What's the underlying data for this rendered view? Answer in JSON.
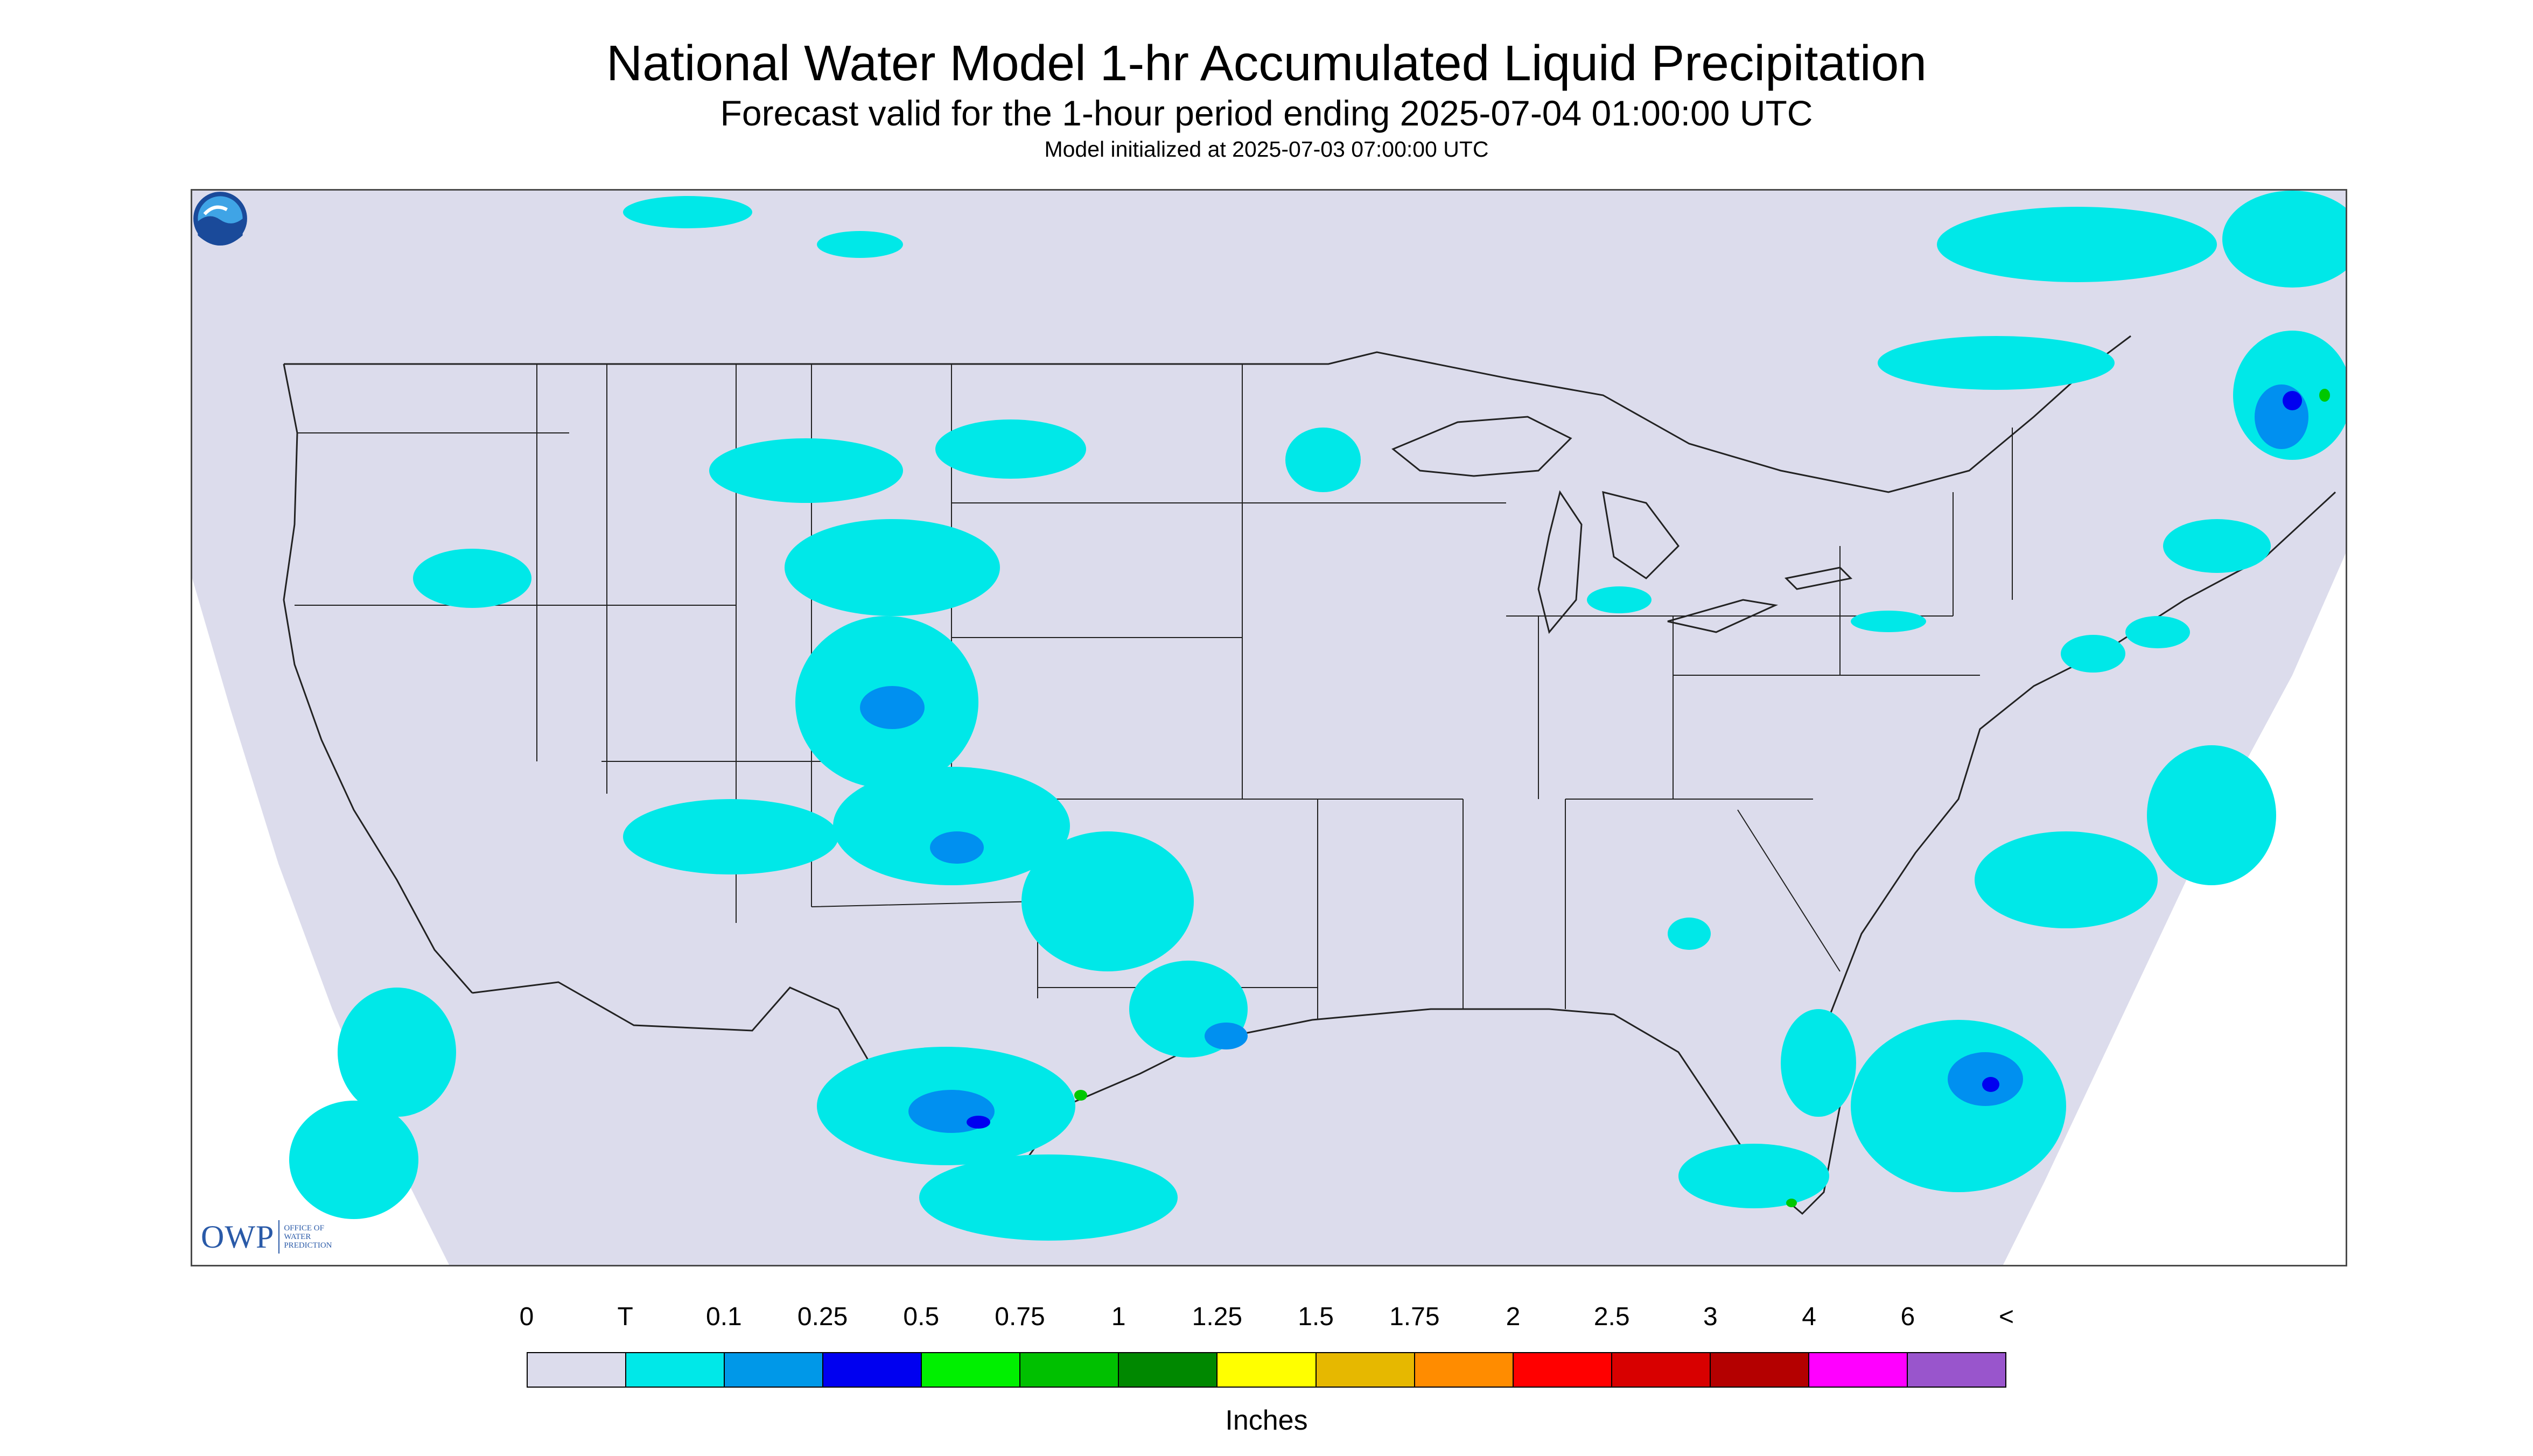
{
  "title": "National Water Model 1-hr Accumulated Liquid Precipitation",
  "subtitle": "Forecast valid for the 1-hour period ending 2025-07-04 01:00:00 UTC",
  "initialized": "Model initialized at 2025-07-03 07:00:00 UTC",
  "map": {
    "projection_background_color": "#dcdcec",
    "precip_color_trace": "#00e8e8",
    "precip_color_light": "#0090f0",
    "precip_color_moderate": "#0000ff",
    "precip_color_heavy": "#00c800",
    "boundary_color": "#222222"
  },
  "owp_logo": {
    "letters": "OWP",
    "text_line1": "Office of",
    "text_line2": "Water",
    "text_line3": "Prediction"
  },
  "noaa_logo": {
    "icon": "noaa-logo-icon"
  },
  "legend": {
    "units": "Inches",
    "tick_labels": [
      "0",
      "T",
      "0.1",
      "0.25",
      "0.5",
      "0.75",
      "1",
      "1.25",
      "1.5",
      "1.75",
      "2",
      "2.5",
      "3",
      "4",
      "6",
      "<"
    ],
    "colors": [
      "#dcdcec",
      "#00e8e8",
      "#0098e8",
      "#0000f0",
      "#00f000",
      "#00c000",
      "#008800",
      "#ffff00",
      "#e6b800",
      "#ff8c00",
      "#ff0000",
      "#d80000",
      "#b40000",
      "#ff00ff",
      "#9955cc"
    ]
  }
}
